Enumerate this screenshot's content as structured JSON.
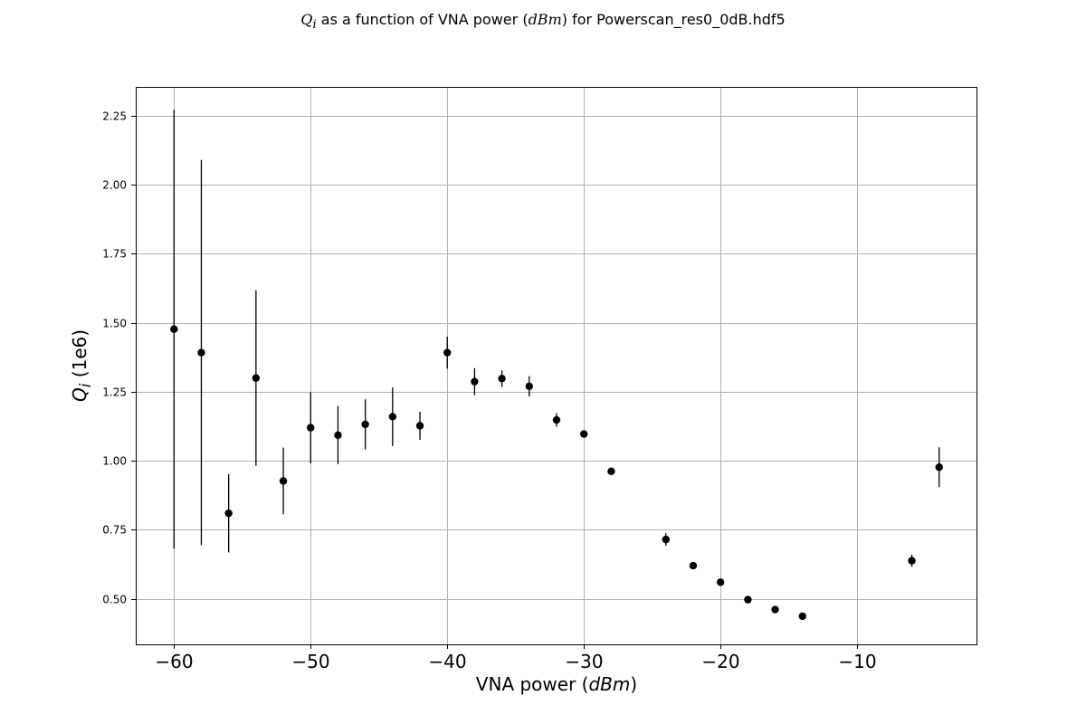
{
  "chart_data": {
    "type": "scatter",
    "title_prefix": "Q",
    "title_sub": "i",
    "title_mid": " as a function of VNA power (",
    "title_unit": "dBm",
    "title_suffix": ") for Powerscan_res0_0dB.hdf5",
    "xlabel_prefix": "VNA power (",
    "xlabel_unit": "dBm",
    "xlabel_suffix": ")",
    "ylabel_prefix": "Q",
    "ylabel_sub": "i",
    "ylabel_suffix": " (1e6)",
    "xlim": [
      -62.8,
      -1.2
    ],
    "ylim": [
      0.335,
      2.355
    ],
    "xticks": [
      -60,
      -50,
      -40,
      -30,
      -20,
      -10
    ],
    "xtick_labels": [
      "−60",
      "−50",
      "−40",
      "−30",
      "−20",
      "−10"
    ],
    "yticks": [
      0.5,
      0.75,
      1.0,
      1.25,
      1.5,
      1.75,
      2.0,
      2.25
    ],
    "ytick_labels": [
      "0.50",
      "0.75",
      "1.00",
      "1.25",
      "1.50",
      "1.75",
      "2.00",
      "2.25"
    ],
    "grid": true,
    "series": [
      {
        "marker_color": "#000000",
        "points": [
          {
            "x": -60,
            "y": 1.477,
            "err": 0.795
          },
          {
            "x": -58,
            "y": 1.392,
            "err": 0.698
          },
          {
            "x": -56,
            "y": 0.81,
            "err": 0.142
          },
          {
            "x": -54,
            "y": 1.3,
            "err": 0.318
          },
          {
            "x": -52,
            "y": 0.927,
            "err": 0.121
          },
          {
            "x": -50,
            "y": 1.12,
            "err": 0.129
          },
          {
            "x": -48,
            "y": 1.093,
            "err": 0.105
          },
          {
            "x": -46,
            "y": 1.132,
            "err": 0.091
          },
          {
            "x": -44,
            "y": 1.16,
            "err": 0.106
          },
          {
            "x": -42,
            "y": 1.127,
            "err": 0.051
          },
          {
            "x": -40,
            "y": 1.392,
            "err": 0.058
          },
          {
            "x": -38,
            "y": 1.287,
            "err": 0.049
          },
          {
            "x": -36,
            "y": 1.298,
            "err": 0.03
          },
          {
            "x": -34,
            "y": 1.27,
            "err": 0.037
          },
          {
            "x": -32,
            "y": 1.148,
            "err": 0.024
          },
          {
            "x": -30,
            "y": 1.097,
            "err": 0.01
          },
          {
            "x": -28,
            "y": 0.962,
            "err": 0.014
          },
          {
            "x": -24,
            "y": 0.715,
            "err": 0.023
          },
          {
            "x": -22,
            "y": 0.62,
            "err": 0.01
          },
          {
            "x": -20,
            "y": 0.56,
            "err": 0.008
          },
          {
            "x": -18,
            "y": 0.497,
            "err": 0.007
          },
          {
            "x": -16,
            "y": 0.461,
            "err": 0.009
          },
          {
            "x": -14,
            "y": 0.437,
            "err": 0.006
          },
          {
            "x": -6,
            "y": 0.638,
            "err": 0.022
          },
          {
            "x": -4,
            "y": 0.977,
            "err": 0.072
          }
        ]
      }
    ]
  }
}
